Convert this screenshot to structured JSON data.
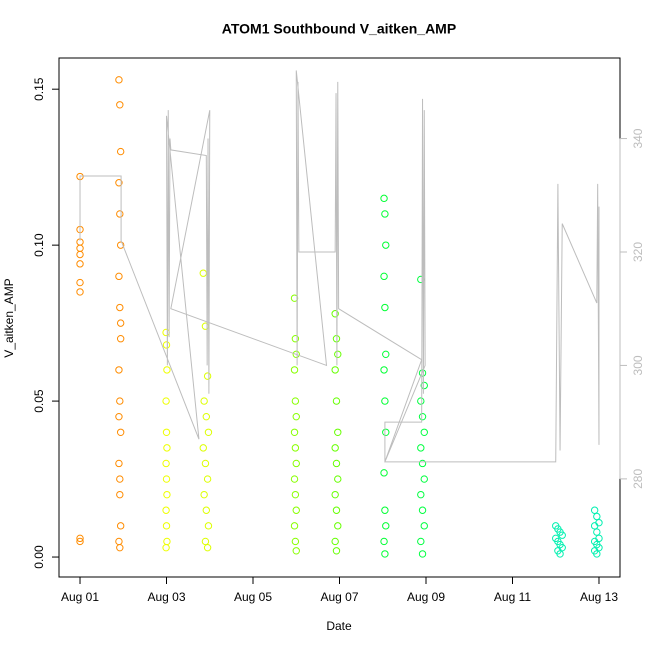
{
  "chart_data": {
    "type": "scatter",
    "title": "ATOM1 Southbound V_aitken_AMP",
    "x_label": "Date",
    "y_label": "V_aitken_AMP",
    "xlim": [
      -0.486,
      12.486
    ],
    "xticks": [
      {
        "value": 0,
        "label": "Aug 01"
      },
      {
        "value": 2,
        "label": "Aug 03"
      },
      {
        "value": 4,
        "label": "Aug 05"
      },
      {
        "value": 6,
        "label": "Aug 07"
      },
      {
        "value": 8,
        "label": "Aug 09"
      },
      {
        "value": 10,
        "label": "Aug 11"
      },
      {
        "value": 12,
        "label": "Aug 13"
      }
    ],
    "ylim": [
      -0.0064,
      0.16
    ],
    "yticks": [
      {
        "value": 0,
        "label": "0.00"
      },
      {
        "value": 0.05,
        "label": "0.05"
      },
      {
        "value": 0.1,
        "label": "0.10"
      },
      {
        "value": 0.15,
        "label": "0.15"
      }
    ],
    "y2lim": [
      262.7,
      354.2
    ],
    "y2ticks": [
      280,
      300,
      320,
      340
    ],
    "y2_color": "#bdbdbd",
    "series": [
      {
        "color": "#ff8c00",
        "x": [
          0,
          0,
          0,
          0,
          0,
          0,
          0,
          0,
          0,
          0
        ],
        "values": [
          0.122,
          0.105,
          0.101,
          0.099,
          0.097,
          0.094,
          0.088,
          0.085,
          0.006,
          0.005
        ]
      },
      {
        "color": "#ff8c00",
        "x": [
          0.9,
          0.92,
          0.94,
          0.9,
          0.92,
          0.94,
          0.9,
          0.92,
          0.94,
          0.9,
          0.92,
          0.94,
          0.9,
          0.92,
          0.94,
          0.9,
          0.92,
          0.94,
          0.9,
          0.92
        ],
        "values": [
          0.153,
          0.145,
          0.13,
          0.12,
          0.11,
          0.1,
          0.09,
          0.08,
          0.07,
          0.06,
          0.05,
          0.04,
          0.03,
          0.02,
          0.01,
          0.005,
          0.003,
          0.075,
          0.045,
          0.025
        ]
      },
      {
        "color": "#eeff00",
        "x": [
          1.99,
          2.0,
          2.01,
          1.99,
          2.0,
          2.01,
          1.99,
          2.0,
          2.01,
          1.99,
          2.0,
          2.01,
          1.99
        ],
        "values": [
          0.072,
          0.068,
          0.06,
          0.05,
          0.04,
          0.035,
          0.03,
          0.025,
          0.02,
          0.015,
          0.01,
          0.005,
          0.003
        ]
      },
      {
        "color": "#ddff00",
        "x": [
          2.85,
          2.9,
          2.95,
          2.87,
          2.92,
          2.97,
          2.85,
          2.9,
          2.95,
          2.87,
          2.92,
          2.97,
          2.9,
          2.95
        ],
        "values": [
          0.091,
          0.074,
          0.058,
          0.05,
          0.045,
          0.04,
          0.035,
          0.03,
          0.025,
          0.02,
          0.015,
          0.01,
          0.005,
          0.003
        ]
      },
      {
        "color": "#88ff00",
        "x": [
          4.96,
          4.98,
          5.0,
          4.96,
          4.98,
          5.0,
          4.96,
          4.98,
          5.0,
          4.96,
          4.98,
          5.0,
          4.96,
          4.98,
          5.0
        ],
        "values": [
          0.083,
          0.07,
          0.065,
          0.06,
          0.05,
          0.045,
          0.04,
          0.035,
          0.03,
          0.025,
          0.02,
          0.015,
          0.01,
          0.005,
          0.002
        ]
      },
      {
        "color": "#66ff00",
        "x": [
          5.9,
          5.93,
          5.96,
          5.9,
          5.93,
          5.96,
          5.9,
          5.93,
          5.96,
          5.9,
          5.93,
          5.96,
          5.9,
          5.93
        ],
        "values": [
          0.078,
          0.07,
          0.065,
          0.06,
          0.05,
          0.04,
          0.035,
          0.03,
          0.025,
          0.02,
          0.015,
          0.01,
          0.005,
          0.002
        ]
      },
      {
        "color": "#00ff33",
        "x": [
          7.03,
          7.05,
          7.07,
          7.03,
          7.05,
          7.07,
          7.03,
          7.05,
          7.07,
          7.03,
          7.05,
          7.07,
          7.03,
          7.05
        ],
        "values": [
          0.115,
          0.11,
          0.1,
          0.09,
          0.08,
          0.065,
          0.06,
          0.05,
          0.04,
          0.027,
          0.015,
          0.01,
          0.005,
          0.001
        ]
      },
      {
        "color": "#00ff40",
        "x": [
          7.88,
          7.92,
          7.96,
          7.88,
          7.92,
          7.96,
          7.88,
          7.92,
          7.96,
          7.88,
          7.92,
          7.96,
          7.88,
          7.92
        ],
        "values": [
          0.089,
          0.059,
          0.055,
          0.05,
          0.045,
          0.04,
          0.035,
          0.03,
          0.025,
          0.02,
          0.015,
          0.01,
          0.005,
          0.001
        ]
      },
      {
        "color": "#00f0b0",
        "x": [
          11.0,
          11.05,
          11.1,
          11.15,
          11.0,
          11.05,
          11.1,
          11.15,
          11.05,
          11.1
        ],
        "values": [
          0.01,
          0.009,
          0.008,
          0.007,
          0.006,
          0.005,
          0.004,
          0.003,
          0.002,
          0.001
        ]
      },
      {
        "color": "#00f0b0",
        "x": [
          11.9,
          11.95,
          12.0,
          11.9,
          11.95,
          12.0,
          11.9,
          11.95,
          12.0,
          11.9,
          11.95
        ],
        "values": [
          0.015,
          0.013,
          0.011,
          0.01,
          0.008,
          0.006,
          0.005,
          0.004,
          0.003,
          0.002,
          0.001
        ]
      },
      {
        "color": "#bdbdbd",
        "axis": "y2",
        "x": [
          0,
          0,
          0.95,
          0.95,
          2.75,
          2.0,
          2.02,
          2.04,
          2.06,
          2.08,
          2.1,
          2.92,
          2.94,
          2.96,
          2.98,
          3.0,
          2.1,
          5.7,
          5.0,
          5.02,
          5.04,
          5.06,
          5.9,
          5.92,
          5.94,
          5.96,
          5.98,
          7.9,
          7.05,
          7.05,
          7.9,
          7.92,
          7.94,
          7.96,
          7.98,
          7.05,
          11.0,
          11.05,
          11.1,
          11.15,
          11.95,
          11.97,
          12.0,
          12.0
        ],
        "values": [
          322,
          333.4,
          333.4,
          322,
          287,
          344,
          300,
          345,
          305,
          340,
          338,
          337,
          300,
          340,
          295,
          345,
          310,
          300,
          352,
          300,
          350,
          320,
          320,
          348,
          300,
          350,
          310,
          301,
          283,
          290,
          290,
          347,
          295,
          345,
          300,
          283,
          283,
          332,
          285,
          325,
          311,
          332,
          286,
          328
        ]
      }
    ]
  }
}
